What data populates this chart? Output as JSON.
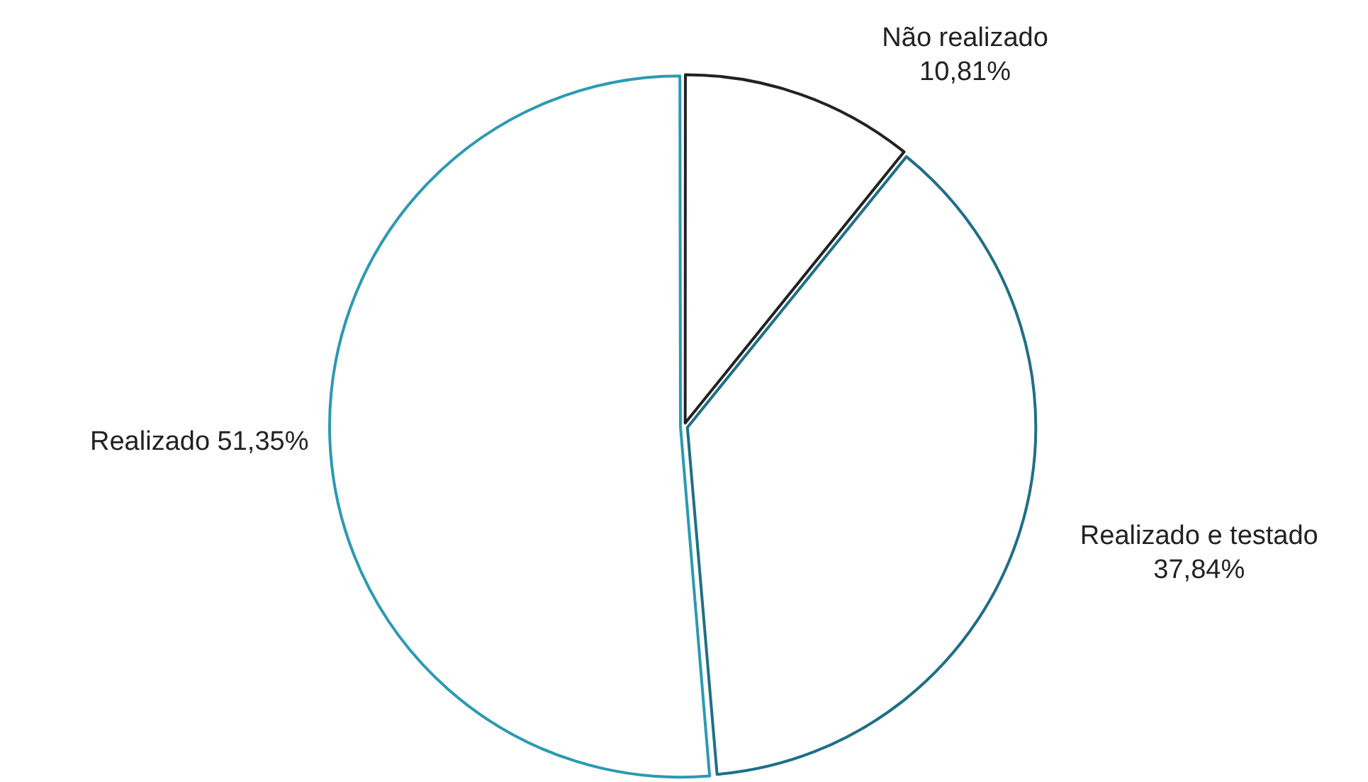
{
  "chart_data": {
    "type": "pie",
    "categories": [
      "Não realizado",
      "Realizado e testado",
      "Realizado"
    ],
    "values": [
      10.81,
      37.84,
      51.35
    ],
    "value_labels": [
      "10,81%",
      "37,84%",
      "51,35%"
    ],
    "colors": [
      "#222222",
      "#1f6f87",
      "#2b9ab3"
    ],
    "legend": false
  }
}
